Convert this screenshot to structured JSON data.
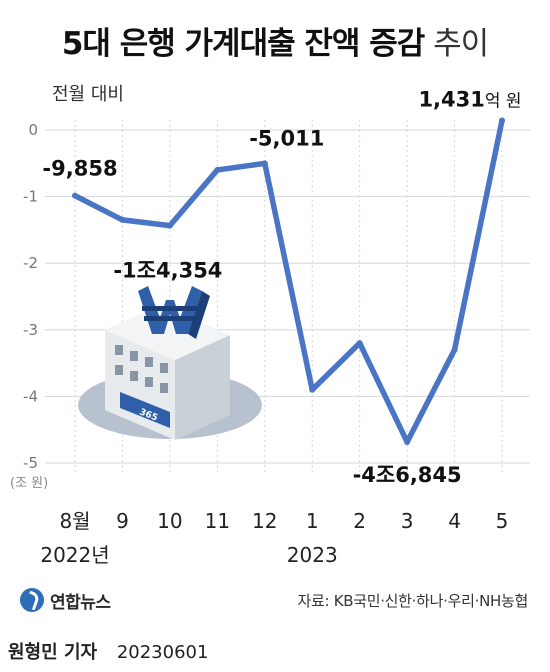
{
  "title": {
    "bold": "5대 은행 가계대출 잔액 증감",
    "light": "추이"
  },
  "chart_data": {
    "type": "line",
    "ylabel": "전월 대비",
    "ylabel_unit": "(조 원)",
    "ylim": [
      -5,
      0
    ],
    "yticks": [
      0,
      -1,
      -2,
      -3,
      -4,
      -5
    ],
    "grid": true,
    "categories": [
      "8월",
      "9",
      "10",
      "11",
      "12",
      "1",
      "2",
      "3",
      "4",
      "5"
    ],
    "year_labels": [
      {
        "text": "2022년",
        "at": "8월"
      },
      {
        "text": "2023",
        "at": "1"
      }
    ],
    "series": [
      {
        "values": [
          -0.9858,
          -1.35,
          -1.4354,
          -0.6,
          -0.5011,
          -3.9,
          -3.2,
          -4.6845,
          -3.3,
          0.1431
        ],
        "color": "#4a74c4"
      }
    ],
    "annotations": [
      {
        "index": 0,
        "main": "-9,858",
        "suffix": ""
      },
      {
        "index": 2,
        "main": "-1조4,354",
        "suffix": ""
      },
      {
        "index": 4,
        "main": "-5,011",
        "suffix": ""
      },
      {
        "index": 7,
        "main": "-4조6,845",
        "suffix": ""
      },
      {
        "index": 9,
        "main": "1,431",
        "suffix": "억 원"
      }
    ]
  },
  "footer": {
    "logo": "연합뉴스",
    "source": "자료: KB국민·신한·하나·우리·NH농협"
  },
  "byline": {
    "name": "원형민 기자",
    "date": "20230601"
  },
  "illustration": {
    "icon": "bank-building-icon",
    "sign": "365"
  }
}
